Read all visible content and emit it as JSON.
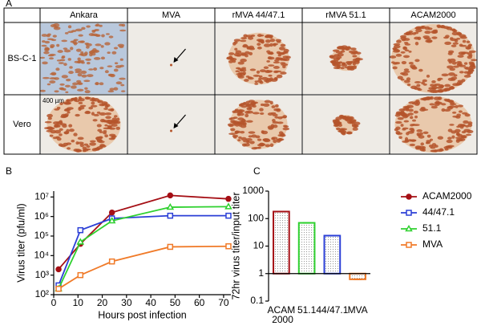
{
  "panel_a": {
    "label": "A",
    "columns": [
      "Ankara",
      "MVA",
      "rMVA 44/47.1",
      "rMVA 51.1",
      "ACAM2000"
    ],
    "rows": [
      "BS-C-1",
      "Vero"
    ],
    "scale_label": "400 µm"
  },
  "chart_data": [
    {
      "type": "line",
      "panel": "B",
      "x_label": "Hours post infection",
      "y_label": "Virus titer (pfu/ml)",
      "log_y": true,
      "x": [
        2,
        11,
        24,
        48,
        72
      ],
      "xlim": [
        0,
        73
      ],
      "xticks": [
        0,
        10,
        20,
        30,
        40,
        50,
        60,
        70
      ],
      "ylim": [
        100,
        20000000
      ],
      "yticks": [
        {
          "value": 100,
          "label": "10²"
        },
        {
          "value": 1000,
          "label": "10³"
        },
        {
          "value": 10000,
          "label": "10⁴"
        },
        {
          "value": 100000,
          "label": "10⁵"
        },
        {
          "value": 1000000,
          "label": "10⁶"
        },
        {
          "value": 10000000,
          "label": "10⁷"
        }
      ],
      "series": [
        {
          "name": "ACAM2000",
          "color": "#a50f15",
          "marker": "circle",
          "values": [
            2000,
            40000,
            1600000,
            12000000,
            8000000
          ]
        },
        {
          "name": "44/47.1",
          "color": "#2b3fd6",
          "marker": "square",
          "values": [
            300,
            200000,
            800000,
            1100000,
            1100000
          ]
        },
        {
          "name": "51.1",
          "color": "#2fd12f",
          "marker": "triangle",
          "values": [
            200,
            50000,
            600000,
            3000000,
            3200000
          ]
        },
        {
          "name": "MVA",
          "color": "#f07a28",
          "marker": "square",
          "values": [
            200,
            1000,
            5000,
            28000,
            30000
          ]
        }
      ]
    },
    {
      "type": "bar",
      "panel": "C",
      "y_label": "72hr virus titer/input titer",
      "log_y": true,
      "baseline": 1,
      "categories": [
        "ACAM 2000",
        "51.1",
        "44/47.1",
        "MVA"
      ],
      "values": [
        180,
        70,
        24,
        0.62
      ],
      "colors": [
        "#a50f15",
        "#2fd12f",
        "#2b3fd6",
        "#f07a28"
      ],
      "ylim": [
        0.1,
        1000
      ],
      "yticks": [
        0.1,
        1,
        10,
        100,
        1000
      ]
    }
  ]
}
